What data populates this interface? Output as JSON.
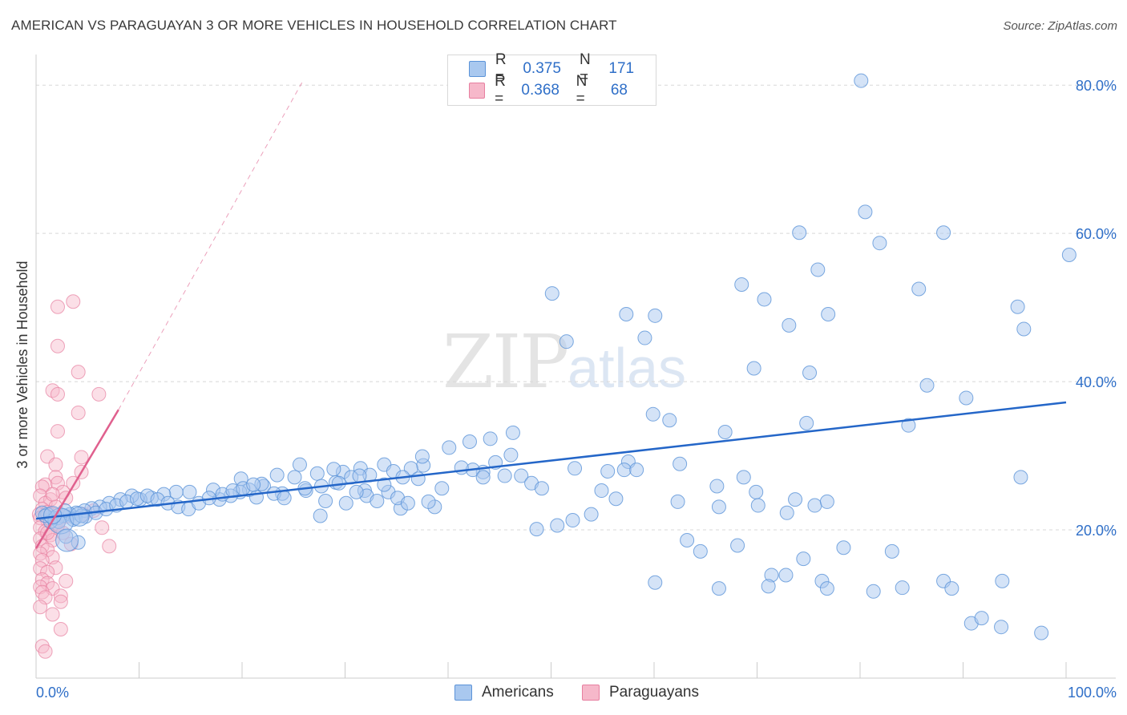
{
  "title": "AMERICAN VS PARAGUAYAN 3 OR MORE VEHICLES IN HOUSEHOLD CORRELATION CHART",
  "source": "Source: ZipAtlas.com",
  "watermark": {
    "zip": "ZIP",
    "atlas": "atlas"
  },
  "colors": {
    "american_fill": "#a9c8ef",
    "american_stroke": "#5b93d8",
    "american_line": "#2466c8",
    "paraguayan_fill": "#f6b8ca",
    "paraguayan_stroke": "#e77fa0",
    "paraguayan_line": "#e0608e",
    "value_text": "#2f6fc8",
    "grid": "#d8d8d8"
  },
  "legend": {
    "americans": {
      "r_label": "R =",
      "r_value": "0.375",
      "n_label": "N =",
      "n_value": "171"
    },
    "paraguayans": {
      "r_label": "R =",
      "r_value": "0.368",
      "n_label": "N =",
      "n_value": "68"
    }
  },
  "bottom_legend": {
    "americans": "Americans",
    "paraguayans": "Paraguayans"
  },
  "chart_data": {
    "type": "scatter",
    "ylabel": "3 or more Vehicles in Household",
    "xlim": [
      0,
      100
    ],
    "ylim": [
      0,
      85
    ],
    "x_tick_labels": {
      "min": "0.0%",
      "max": "100.0%"
    },
    "y_ticks": [
      {
        "value": 20,
        "label": "20.0%"
      },
      {
        "value": 40,
        "label": "40.0%"
      },
      {
        "value": 60,
        "label": "60.0%"
      },
      {
        "value": 80,
        "label": "80.0%"
      }
    ],
    "series": [
      {
        "name": "Americans",
        "trend": {
          "x": [
            0,
            100
          ],
          "y": [
            21.5,
            37.2
          ],
          "style": "solid"
        },
        "points": [
          [
            80.1,
            80.6
          ],
          [
            80.5,
            62.9
          ],
          [
            88.1,
            60.1
          ],
          [
            74.1,
            60.1
          ],
          [
            81.9,
            58.7
          ],
          [
            100.3,
            57.1
          ],
          [
            75.9,
            55.1
          ],
          [
            68.5,
            53.1
          ],
          [
            85.7,
            52.5
          ],
          [
            95.3,
            50.1
          ],
          [
            95.9,
            47.1
          ],
          [
            69.7,
            41.8
          ],
          [
            75.1,
            41.2
          ],
          [
            86.5,
            39.5
          ],
          [
            90.3,
            37.8
          ],
          [
            74.8,
            34.4
          ],
          [
            84.7,
            34.1
          ],
          [
            61.5,
            34.8
          ],
          [
            66.9,
            33.2
          ],
          [
            70.7,
            51.1
          ],
          [
            76.9,
            49.1
          ],
          [
            73.1,
            47.6
          ],
          [
            60.1,
            48.9
          ],
          [
            57.3,
            49.1
          ],
          [
            59.1,
            45.9
          ],
          [
            51.5,
            45.4
          ],
          [
            50.1,
            51.9
          ],
          [
            59.9,
            35.6
          ],
          [
            57.5,
            29.2
          ],
          [
            52.3,
            28.3
          ],
          [
            57.1,
            28.1
          ],
          [
            58.3,
            28.1
          ],
          [
            62.5,
            28.9
          ],
          [
            68.7,
            27.1
          ],
          [
            66.1,
            25.9
          ],
          [
            62.3,
            23.8
          ],
          [
            69.9,
            25.1
          ],
          [
            73.7,
            24.1
          ],
          [
            75.6,
            23.3
          ],
          [
            72.9,
            22.3
          ],
          [
            55.5,
            27.9
          ],
          [
            54.9,
            25.3
          ],
          [
            56.3,
            24.2
          ],
          [
            53.9,
            22.1
          ],
          [
            50.6,
            20.6
          ],
          [
            52.1,
            21.3
          ],
          [
            48.6,
            20.1
          ],
          [
            45.5,
            27.3
          ],
          [
            43.4,
            27.8
          ],
          [
            42.4,
            28.1
          ],
          [
            41.3,
            28.4
          ],
          [
            44.6,
            29.1
          ],
          [
            46.3,
            33.1
          ],
          [
            37.6,
            28.7
          ],
          [
            33.8,
            28.8
          ],
          [
            31.5,
            28.3
          ],
          [
            29.8,
            27.8
          ],
          [
            39.4,
            25.6
          ],
          [
            38.7,
            23.1
          ],
          [
            35.4,
            22.9
          ],
          [
            38.1,
            23.8
          ],
          [
            34.2,
            25.1
          ],
          [
            31.9,
            25.3
          ],
          [
            33.8,
            26.1
          ],
          [
            27.3,
            27.6
          ],
          [
            25.1,
            27.1
          ],
          [
            23.4,
            27.4
          ],
          [
            22.1,
            25.9
          ],
          [
            20.7,
            25.4
          ],
          [
            19.8,
            25.1
          ],
          [
            18.9,
            24.6
          ],
          [
            17.8,
            24.1
          ],
          [
            21.4,
            24.4
          ],
          [
            23.9,
            24.9
          ],
          [
            26.2,
            25.3
          ],
          [
            27.7,
            25.9
          ],
          [
            29.1,
            26.4
          ],
          [
            30.6,
            27.1
          ],
          [
            32.4,
            27.4
          ],
          [
            34.7,
            27.9
          ],
          [
            36.4,
            28.3
          ],
          [
            37.5,
            29.9
          ],
          [
            40.1,
            31.1
          ],
          [
            42.1,
            31.9
          ],
          [
            44.1,
            32.3
          ],
          [
            43.4,
            27.1
          ],
          [
            35.6,
            27.1
          ],
          [
            31.4,
            27.3
          ],
          [
            28.9,
            28.2
          ],
          [
            25.6,
            28.8
          ],
          [
            21.9,
            26.2
          ],
          [
            19.9,
            26.9
          ],
          [
            17.2,
            25.4
          ],
          [
            14.9,
            25.1
          ],
          [
            13.6,
            25.1
          ],
          [
            12.4,
            24.8
          ],
          [
            11.2,
            24.3
          ],
          [
            10.1,
            24.1
          ],
          [
            9.3,
            24.6
          ],
          [
            8.2,
            24.1
          ],
          [
            7.1,
            23.6
          ],
          [
            6.2,
            23.1
          ],
          [
            5.4,
            22.9
          ],
          [
            4.7,
            22.6
          ],
          [
            3.9,
            22.3
          ],
          [
            3.3,
            22.1
          ],
          [
            2.6,
            21.9
          ],
          [
            2.1,
            21.6
          ],
          [
            1.6,
            21.6
          ],
          [
            1.1,
            22.1
          ],
          [
            0.6,
            22.3
          ],
          [
            2.8,
            22.6
          ],
          [
            3.8,
            21.6
          ],
          [
            4.8,
            21.8
          ],
          [
            5.8,
            22.3
          ],
          [
            6.8,
            22.8
          ],
          [
            7.8,
            23.3
          ],
          [
            8.8,
            23.8
          ],
          [
            9.8,
            24.2
          ],
          [
            10.8,
            24.6
          ],
          [
            11.8,
            24.1
          ],
          [
            12.8,
            23.6
          ],
          [
            13.8,
            23.1
          ],
          [
            14.8,
            22.8
          ],
          [
            15.8,
            23.6
          ],
          [
            16.8,
            24.3
          ],
          [
            18.1,
            24.8
          ],
          [
            19.1,
            25.3
          ],
          [
            20.1,
            25.6
          ],
          [
            21.1,
            26.1
          ],
          [
            23.1,
            24.9
          ],
          [
            24.1,
            24.3
          ],
          [
            26.1,
            25.6
          ],
          [
            28.1,
            23.9
          ],
          [
            30.1,
            23.6
          ],
          [
            32.1,
            24.6
          ],
          [
            33.1,
            23.9
          ],
          [
            35.1,
            24.3
          ],
          [
            36.1,
            23.6
          ],
          [
            46.1,
            30.1
          ],
          [
            47.1,
            27.3
          ],
          [
            48.1,
            26.3
          ],
          [
            49.1,
            25.6
          ],
          [
            2.2,
            21.1
          ],
          [
            1.4,
            21.1
          ],
          [
            3.6,
            21.4
          ],
          [
            4.4,
            21.9
          ],
          [
            0.9,
            21.9
          ],
          [
            2.9,
            19.1
          ],
          [
            4.1,
            18.3
          ],
          [
            37.1,
            26.9
          ],
          [
            29.4,
            26.3
          ],
          [
            27.6,
            21.9
          ],
          [
            31.1,
            25.1
          ],
          [
            66.3,
            23.1
          ],
          [
            68.1,
            17.9
          ],
          [
            63.2,
            18.6
          ],
          [
            70.1,
            23.3
          ],
          [
            76.8,
            23.8
          ],
          [
            78.4,
            17.6
          ],
          [
            83.1,
            17.1
          ],
          [
            74.5,
            16.1
          ],
          [
            64.5,
            17.1
          ],
          [
            71.4,
            13.9
          ],
          [
            72.8,
            13.9
          ],
          [
            76.3,
            13.1
          ],
          [
            66.3,
            12.1
          ],
          [
            71.1,
            12.4
          ],
          [
            76.8,
            12.1
          ],
          [
            81.3,
            11.7
          ],
          [
            84.1,
            12.2
          ],
          [
            97.6,
            6.1
          ],
          [
            93.8,
            13.1
          ],
          [
            95.6,
            27.1
          ],
          [
            88.1,
            13.1
          ],
          [
            90.8,
            7.4
          ],
          [
            93.7,
            6.9
          ],
          [
            91.8,
            8.1
          ],
          [
            88.9,
            12.1
          ],
          [
            60.1,
            12.9
          ]
        ]
      },
      {
        "name": "Paraguayans",
        "trend": {
          "x": [
            0,
            8
          ],
          "y": [
            17.5,
            36.2
          ],
          "style": "solid",
          "extended": {
            "x": [
              8,
              26
            ],
            "y": [
              36.2,
              80.8
            ],
            "style": "dashed"
          }
        },
        "points": [
          [
            3.6,
            50.8
          ],
          [
            2.1,
            50.1
          ],
          [
            2.1,
            44.8
          ],
          [
            4.1,
            41.3
          ],
          [
            6.1,
            38.3
          ],
          [
            1.6,
            38.8
          ],
          [
            2.1,
            38.3
          ],
          [
            4.1,
            35.8
          ],
          [
            2.1,
            33.3
          ],
          [
            4.4,
            29.8
          ],
          [
            1.1,
            29.9
          ],
          [
            1.9,
            28.8
          ],
          [
            4.4,
            27.8
          ],
          [
            1.9,
            27.1
          ],
          [
            0.9,
            26.1
          ],
          [
            2.1,
            26.3
          ],
          [
            0.6,
            25.8
          ],
          [
            2.6,
            25.1
          ],
          [
            0.4,
            24.6
          ],
          [
            1.4,
            24.1
          ],
          [
            0.9,
            23.6
          ],
          [
            1.9,
            23.1
          ],
          [
            0.6,
            22.8
          ],
          [
            1.1,
            22.4
          ],
          [
            1.6,
            22.1
          ],
          [
            0.3,
            22.1
          ],
          [
            0.4,
            21.6
          ],
          [
            1.1,
            21.3
          ],
          [
            1.9,
            20.8
          ],
          [
            0.4,
            20.3
          ],
          [
            0.9,
            19.8
          ],
          [
            1.4,
            19.3
          ],
          [
            0.4,
            18.8
          ],
          [
            1.6,
            18.6
          ],
          [
            0.6,
            17.8
          ],
          [
            1.1,
            17.3
          ],
          [
            0.4,
            16.8
          ],
          [
            1.6,
            16.3
          ],
          [
            0.6,
            15.9
          ],
          [
            1.9,
            14.9
          ],
          [
            0.4,
            14.8
          ],
          [
            1.1,
            14.3
          ],
          [
            0.6,
            13.3
          ],
          [
            2.9,
            13.1
          ],
          [
            1.1,
            12.8
          ],
          [
            0.4,
            12.3
          ],
          [
            1.6,
            12.1
          ],
          [
            0.6,
            11.6
          ],
          [
            2.4,
            11.1
          ],
          [
            0.9,
            10.9
          ],
          [
            2.4,
            10.3
          ],
          [
            0.4,
            9.6
          ],
          [
            1.6,
            8.6
          ],
          [
            2.4,
            6.6
          ],
          [
            0.6,
            4.3
          ],
          [
            0.9,
            3.6
          ],
          [
            6.4,
            20.3
          ],
          [
            7.1,
            17.8
          ],
          [
            3.4,
            18.1
          ],
          [
            2.6,
            19.6
          ],
          [
            2.9,
            21.8
          ],
          [
            4.6,
            22.1
          ],
          [
            5.6,
            22.6
          ],
          [
            1.6,
            24.8
          ],
          [
            2.9,
            24.3
          ],
          [
            3.6,
            26.3
          ],
          [
            2.1,
            20.6
          ],
          [
            1.1,
            19.6
          ]
        ]
      }
    ]
  }
}
